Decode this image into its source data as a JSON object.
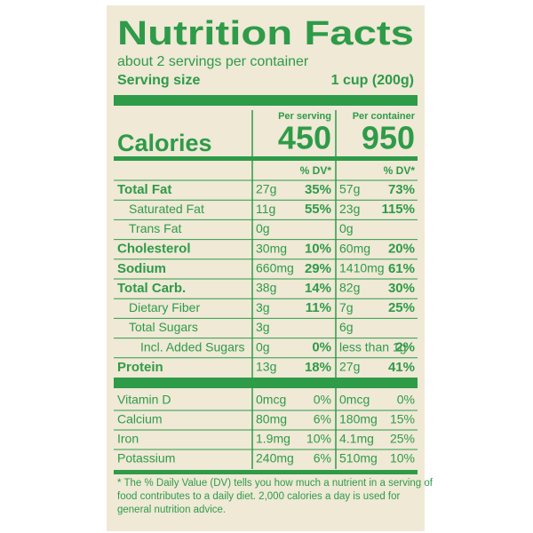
{
  "title": "Nutrition Facts",
  "servings": "about 2 servings per container",
  "serving_size_label": "Serving size",
  "serving_size": "1 cup (200g)",
  "columns": [
    "Per serving",
    "Per container"
  ],
  "calories_label": "Calories",
  "calories": [
    450,
    950
  ],
  "dv_header": [
    "% DV*",
    "% DV*"
  ],
  "rows": [
    {
      "name": "Total Fat",
      "level": 0,
      "values": [
        "27g",
        "35%",
        "57g",
        "73%"
      ]
    },
    {
      "name": "Saturated Fat",
      "level": 1,
      "values": [
        "11g",
        "55%",
        "23g",
        "115%"
      ]
    },
    {
      "name": "Trans Fat",
      "level": 1,
      "values": [
        "0g",
        null,
        "0g",
        null
      ]
    },
    {
      "name": "Cholesterol",
      "level": 0,
      "values": [
        "30mg",
        "10%",
        "60mg",
        "20%"
      ]
    },
    {
      "name": "Sodium",
      "level": 0,
      "values": [
        "660mg",
        "29%",
        "1410mg",
        "61%"
      ]
    },
    {
      "name": "Total Carb.",
      "level": 0,
      "values": [
        "38g",
        "14%",
        "82g",
        "30%"
      ]
    },
    {
      "name": "Dietary Fiber",
      "level": 1,
      "values": [
        "3g",
        "11%",
        "7g",
        "25%"
      ]
    },
    {
      "name": "Total Sugars",
      "level": 1,
      "values": [
        "3g",
        null,
        "6g",
        null
      ]
    },
    {
      "name": "Incl. Added Sugars",
      "level": 2,
      "values": [
        "0g",
        "0%",
        "less than 1g",
        "2%"
      ]
    },
    {
      "name": "Protein",
      "level": 0,
      "values": [
        "13g",
        "18%",
        "27g",
        "41%"
      ]
    }
  ],
  "vitamins": [
    {
      "name": "Vitamin D",
      "values": [
        "0mcg",
        "0%",
        "0mcg",
        "0%"
      ]
    },
    {
      "name": "Calcium",
      "values": [
        "80mg",
        "6%",
        "180mg",
        "15%"
      ]
    },
    {
      "name": "Iron",
      "values": [
        "1.9mg",
        "10%",
        "4.1mg",
        "25%"
      ]
    },
    {
      "name": "Potassium",
      "values": [
        "240mg",
        "6%",
        "510mg",
        "10%"
      ]
    }
  ],
  "footnote": [
    "* The % Daily Value (DV) tells you how much a nutrient in a serving of",
    "food contributes to a daily diet. 2,000 calories a day is used for",
    "general nutrition advice."
  ]
}
